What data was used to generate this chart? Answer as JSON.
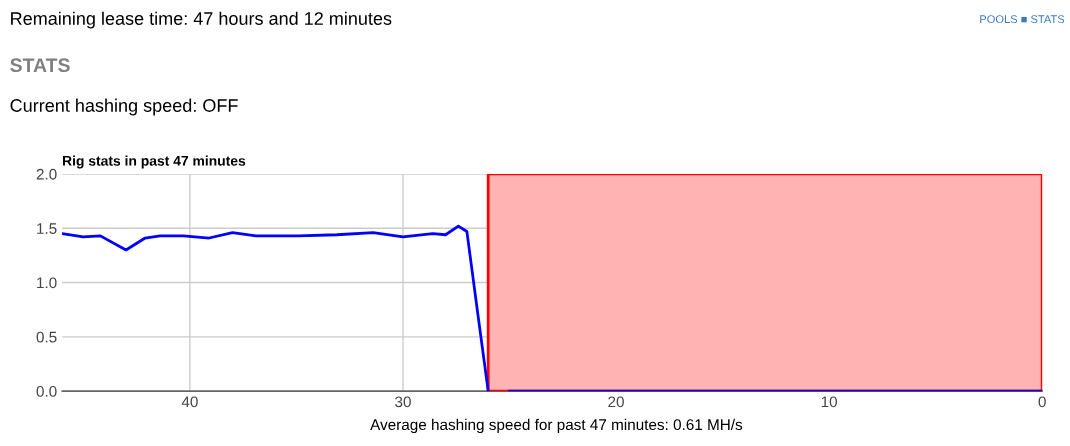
{
  "chart_data": {
    "type": "line",
    "title": "Rig stats in past 47 minutes",
    "x": [
      46,
      45,
      44.2,
      43,
      42.1,
      41.4,
      40.3,
      39.1,
      38,
      36.9,
      34.9,
      33.1,
      31.4,
      30,
      28.6,
      28,
      27.4,
      27,
      26.5,
      26,
      25.5,
      25,
      0
    ],
    "series": [
      {
        "color": "#0000ff",
        "values": [
          1.45,
          1.42,
          1.43,
          1.3,
          1.41,
          1.43,
          1.43,
          1.41,
          1.46,
          1.43,
          1.43,
          1.44,
          1.46,
          1.42,
          1.45,
          1.44,
          1.52,
          1.47,
          0.73,
          0,
          null,
          0,
          0
        ]
      }
    ],
    "xlim": [
      46,
      0
    ],
    "xticks": [
      40,
      30,
      20,
      10,
      0
    ],
    "ylim": [
      0,
      2.0
    ],
    "yticks": [
      {
        "value": 0,
        "label": "0.0"
      },
      0.5,
      {
        "value": 1,
        "label": "1.0"
      },
      1.5,
      {
        "value": 2,
        "label": "2.0"
      }
    ],
    "bands": [
      {
        "axis": "x",
        "from": 26,
        "to": 0,
        "color": "#ffb3b3"
      }
    ],
    "grid": true,
    "marker": "none",
    "line_style": "solid",
    "annotations": [
      "Remaining lease time: 47 hours and 12 minutes",
      "STATS",
      "Current hashing speed: OFF",
      "POOLS ■ STATS",
      "Average hashing speed for past 47 minutes: 0.61 MH/s"
    ]
  }
}
